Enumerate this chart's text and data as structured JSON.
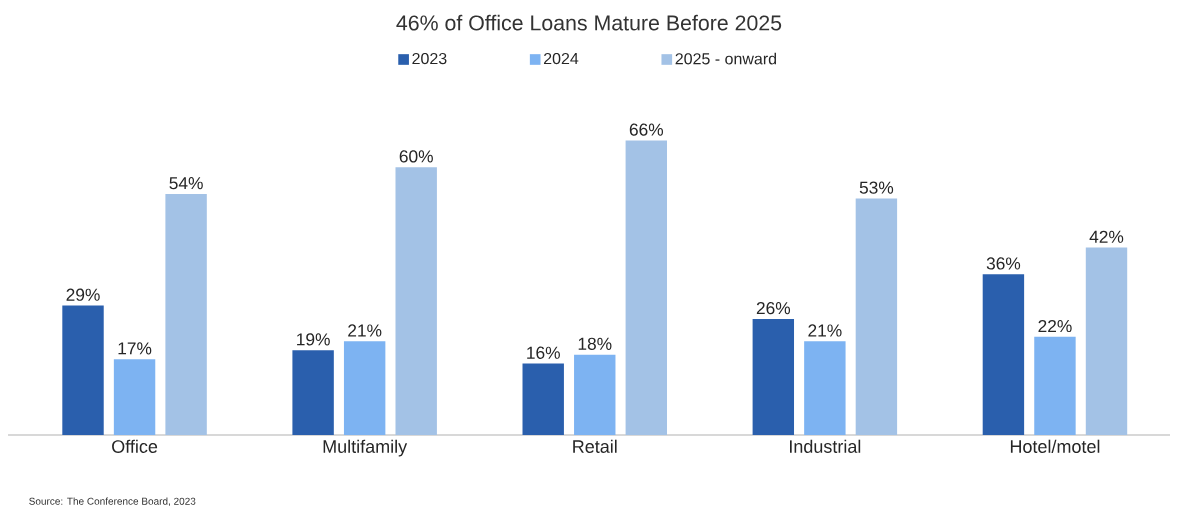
{
  "chart_data": {
    "type": "bar",
    "title": "46% of Office Loans Mature  Before 2025",
    "categories": [
      "Office",
      "Multifamily",
      "Retail",
      "Industrial",
      "Hotel/motel"
    ],
    "series": [
      {
        "name": "2023",
        "color": "#2a5fad",
        "values": [
          29,
          19,
          16,
          26,
          36
        ],
        "value_labels": [
          "29%",
          "19%",
          "16%",
          "26%",
          "36%"
        ]
      },
      {
        "name": "2024",
        "color": "#7db3f2",
        "values": [
          17,
          21,
          18,
          21,
          22
        ],
        "value_labels": [
          "17%",
          "21%",
          "18%",
          "21%",
          "22%"
        ]
      },
      {
        "name": "2025 - onward",
        "color": "#a3c2e6",
        "values": [
          54,
          60,
          66,
          53,
          42
        ],
        "value_labels": [
          "54%",
          "60%",
          "66%",
          "53%",
          "42%"
        ]
      }
    ],
    "legend": "top",
    "annotations": [
      "Source: The Conference Board, 2023"
    ]
  }
}
